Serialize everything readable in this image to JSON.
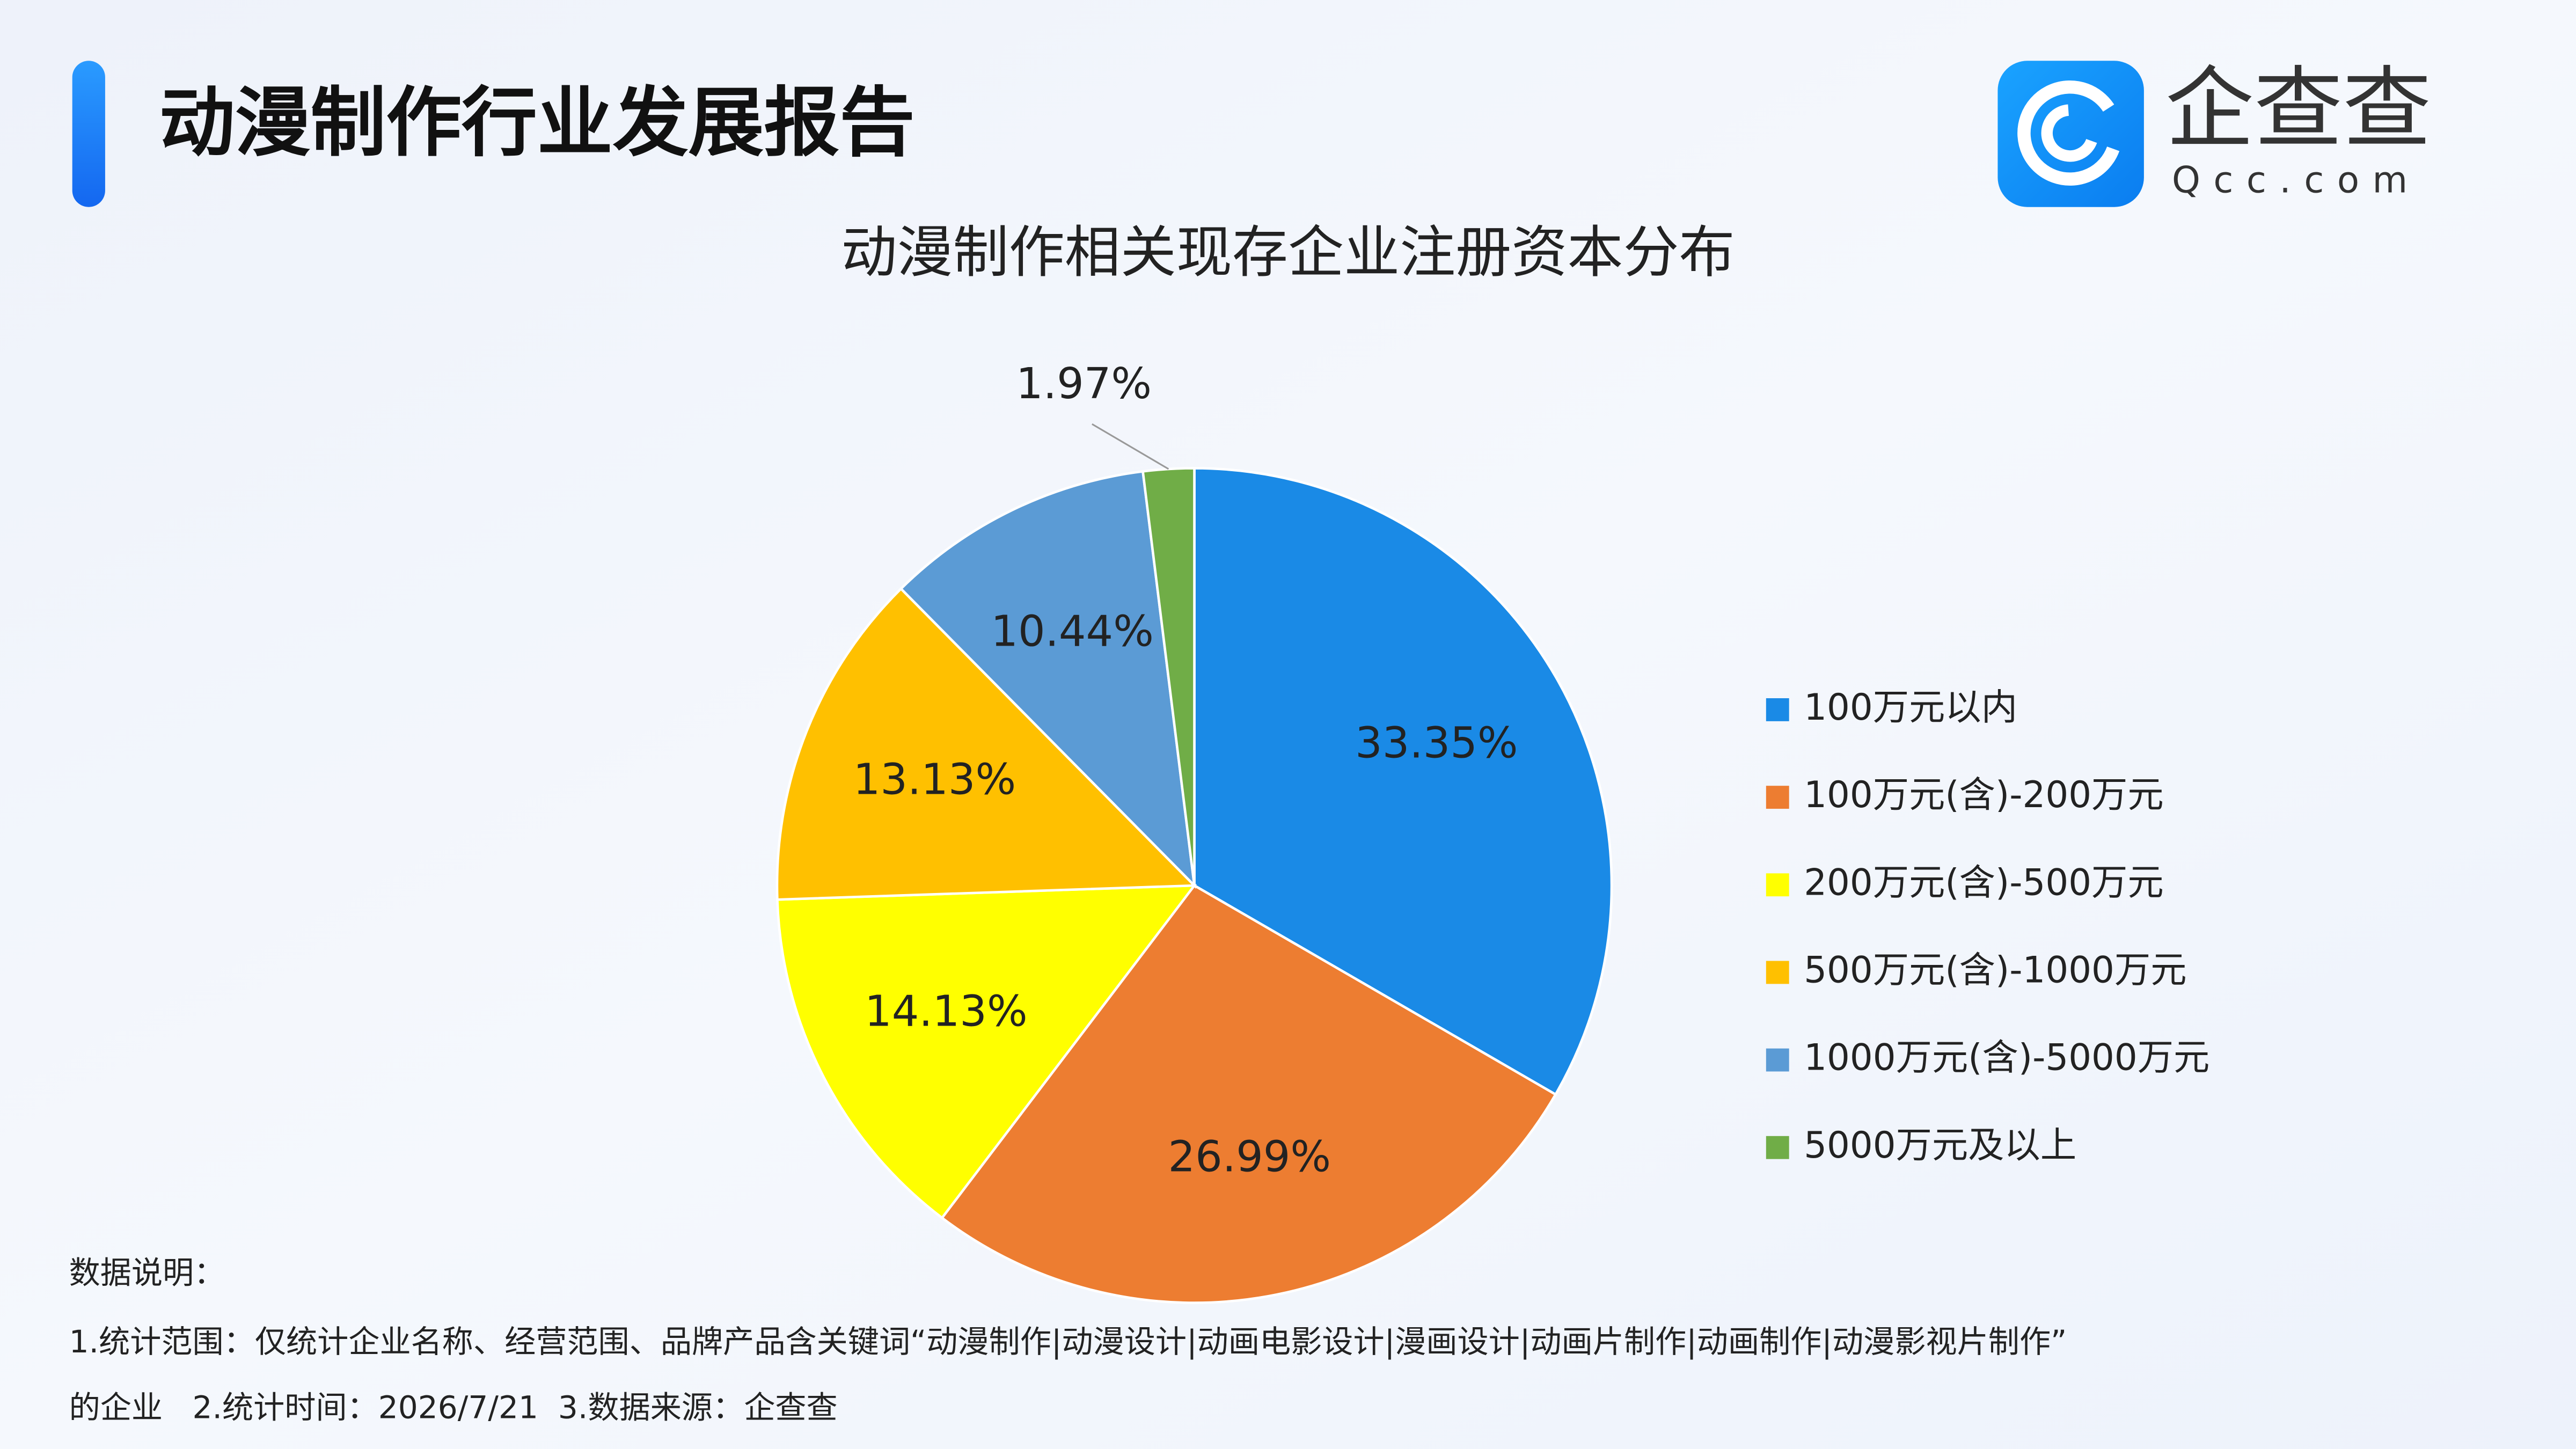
{
  "header": {
    "title": "动漫制作行业发展报告",
    "logo_text": "企查查",
    "logo_domain": "Qcc.com"
  },
  "chart_data": {
    "type": "pie",
    "title": "动漫制作相关现存企业注册资本分布",
    "categories": [
      "100万元以内",
      "100万元(含)-200万元",
      "200万元(含)-500万元",
      "500万元(含)-1000万元",
      "1000万元(含)-5000万元",
      "5000万元及以上"
    ],
    "values": [
      33.35,
      26.99,
      14.13,
      13.13,
      10.44,
      1.97
    ],
    "value_labels": [
      "33.35%",
      "26.99%",
      "14.13%",
      "13.13%",
      "10.44%",
      "1.97%"
    ],
    "colors": [
      "#1a8ae6",
      "#ed7d31",
      "#ffff00",
      "#ffc000",
      "#5b9bd5",
      "#70ad47"
    ],
    "legend": "right"
  },
  "notes": [
    "数据说明：",
    "1.统计范围：仅统计企业名称、经营范围、品牌产品含关键词“动漫制作|动漫设计|动画电影设计|漫画设计|动画片制作|动画制作|动漫影视片制作”",
    "的企业   2.统计时间：2026/7/21  3.数据来源：企查查"
  ]
}
